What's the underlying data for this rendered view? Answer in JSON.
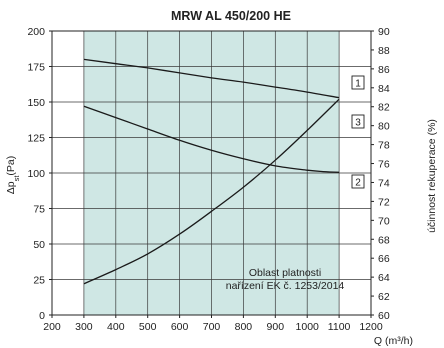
{
  "chart_data": {
    "type": "line",
    "title": "MRW AL 450/200 HE",
    "xlabel": "Q (m³/h)",
    "ylabel_left": "Δpst(Pa)",
    "ylabel_left_main": "Δp",
    "ylabel_left_sub": "st",
    "ylabel_left_suffix": "(Pa)",
    "ylabel_right": "účinnost rekuperace (%)",
    "xlim": [
      200,
      1200
    ],
    "ylim_left": [
      0,
      200
    ],
    "ylim_right": [
      60,
      90
    ],
    "x_ticks": [
      200,
      300,
      400,
      500,
      600,
      700,
      800,
      900,
      1000,
      1100,
      1200
    ],
    "y_left_ticks": [
      0,
      25,
      50,
      75,
      100,
      125,
      150,
      175,
      200
    ],
    "y_right_ticks": [
      60,
      62,
      64,
      66,
      68,
      70,
      72,
      74,
      76,
      78,
      80,
      82,
      84,
      86,
      88,
      90
    ],
    "grid": true,
    "valid_region": {
      "x_range": [
        300,
        1100
      ],
      "label_lines": [
        "Oblast platnosti",
        "nařízení EK č. 1253/2014"
      ],
      "color": "#cfe7e4"
    },
    "series": [
      {
        "name": "1",
        "axis": "left",
        "x": [
          300,
          400,
          500,
          600,
          700,
          800,
          900,
          1000,
          1100
        ],
        "y": [
          180,
          177,
          174,
          170.5,
          167,
          164,
          160.5,
          157,
          153
        ]
      },
      {
        "name": "2",
        "axis": "left",
        "x": [
          300,
          400,
          500,
          600,
          700,
          800,
          900,
          1000,
          1050,
          1100
        ],
        "y": [
          147,
          139,
          131,
          123,
          116,
          110,
          105,
          102,
          101,
          100.5
        ]
      },
      {
        "name": "3",
        "axis": "left",
        "x": [
          300,
          400,
          500,
          600,
          700,
          800,
          900,
          1000,
          1100
        ],
        "y": [
          22,
          32,
          43,
          57,
          73,
          90,
          109,
          130,
          152
        ]
      }
    ]
  }
}
